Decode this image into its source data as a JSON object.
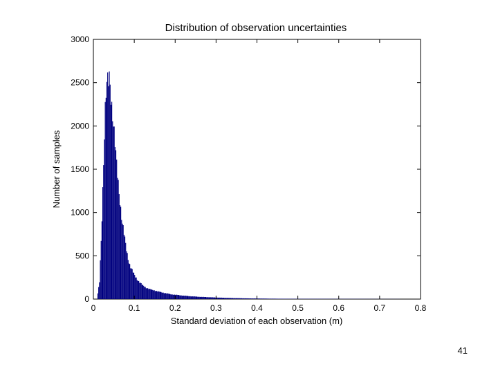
{
  "page": {
    "number": "41"
  },
  "chart_data": {
    "type": "bar",
    "title": "Distribution of observation uncertainties",
    "xlabel": "Standard deviation of each observation (m)",
    "ylabel": "Number of samples",
    "xlim": [
      0,
      0.8
    ],
    "ylim": [
      0,
      3000
    ],
    "x_ticks": [
      "0",
      "0.1",
      "0.2",
      "0.3",
      "0.4",
      "0.5",
      "0.6",
      "0.7",
      "0.8"
    ],
    "y_ticks": [
      "0",
      "500",
      "1000",
      "1500",
      "2000",
      "2500",
      "3000"
    ],
    "grid": false,
    "bar_color": "#00007f",
    "bin_width": 0.002,
    "bins": {
      "x": [
        0.01,
        0.015,
        0.02,
        0.025,
        0.03,
        0.035,
        0.04,
        0.045,
        0.05,
        0.055,
        0.06,
        0.065,
        0.07,
        0.075,
        0.08,
        0.085,
        0.09,
        0.095,
        0.1,
        0.11,
        0.12,
        0.13,
        0.14,
        0.15,
        0.16,
        0.17,
        0.18,
        0.19,
        0.2,
        0.22,
        0.24,
        0.26,
        0.28,
        0.3,
        0.32,
        0.34,
        0.36,
        0.38,
        0.4,
        0.43,
        0.46,
        0.5,
        0.55,
        0.6,
        0.65,
        0.7,
        0.75
      ],
      "y": [
        30,
        200,
        800,
        1600,
        2300,
        2500,
        2600,
        2250,
        1950,
        1650,
        1400,
        1150,
        900,
        750,
        600,
        470,
        380,
        330,
        280,
        210,
        160,
        130,
        110,
        100,
        85,
        75,
        65,
        55,
        50,
        40,
        32,
        26,
        22,
        18,
        15,
        12,
        10,
        8,
        7,
        5,
        4,
        3,
        3,
        2,
        2,
        1,
        1
      ]
    }
  }
}
